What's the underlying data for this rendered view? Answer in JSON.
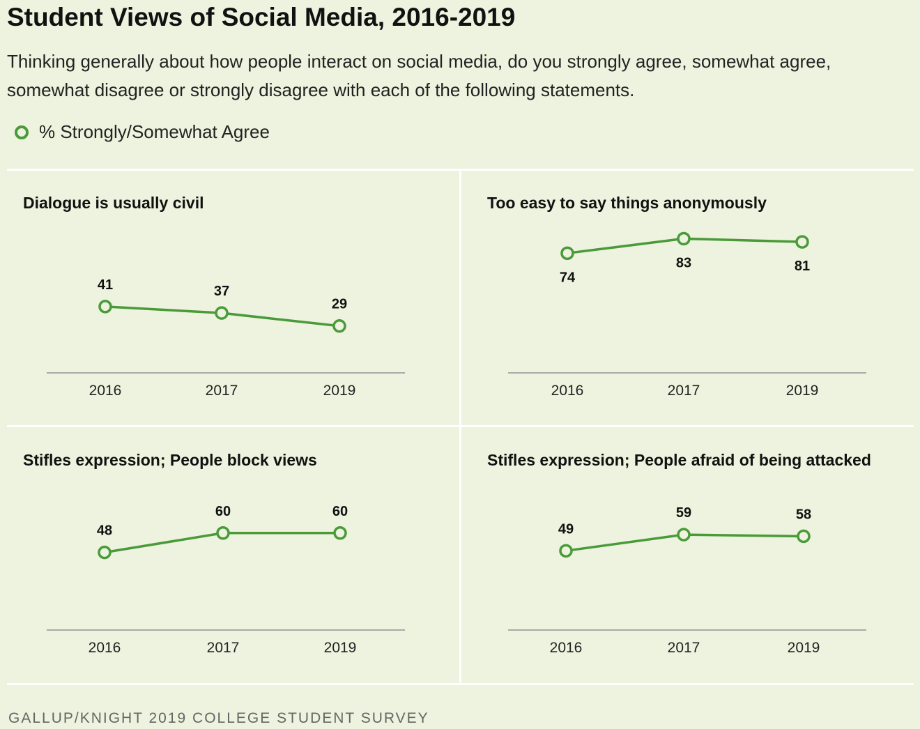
{
  "title": "Student Views of Social Media, 2016-2019",
  "subtitle": "Thinking generally about how people interact on social media, do you strongly agree, somewhat agree, somewhat disagree or strongly disagree with each of the following statements.",
  "legend": {
    "label": "% Strongly/Somewhat Agree"
  },
  "source": "GALLUP/KNIGHT 2019 COLLEGE STUDENT SURVEY",
  "colors": {
    "series": "#4a9a3a",
    "background": "#edf3de",
    "axis": "#aaaaaa"
  },
  "chart_data": [
    {
      "type": "line",
      "title": "Dialogue is usually civil",
      "categories": [
        "2016",
        "2017",
        "2019"
      ],
      "series": [
        {
          "name": "% Strongly/Somewhat Agree",
          "values": [
            41,
            37,
            29
          ]
        }
      ],
      "ylim": [
        0,
        100
      ],
      "label_position": "above"
    },
    {
      "type": "line",
      "title": "Too easy to say things anonymously",
      "categories": [
        "2016",
        "2017",
        "2019"
      ],
      "series": [
        {
          "name": "% Strongly/Somewhat Agree",
          "values": [
            74,
            83,
            81
          ]
        }
      ],
      "ylim": [
        0,
        100
      ],
      "label_position": "below"
    },
    {
      "type": "line",
      "title": "Stifles expression; People block views",
      "categories": [
        "2016",
        "2017",
        "2019"
      ],
      "series": [
        {
          "name": "% Strongly/Somewhat Agree",
          "values": [
            48,
            60,
            60
          ]
        }
      ],
      "ylim": [
        0,
        100
      ],
      "label_position": "above"
    },
    {
      "type": "line",
      "title": "Stifles expression; People afraid of being attacked",
      "categories": [
        "2016",
        "2017",
        "2019"
      ],
      "series": [
        {
          "name": "% Strongly/Somewhat Agree",
          "values": [
            49,
            59,
            58
          ]
        }
      ],
      "ylim": [
        0,
        100
      ],
      "label_position": "above"
    }
  ]
}
